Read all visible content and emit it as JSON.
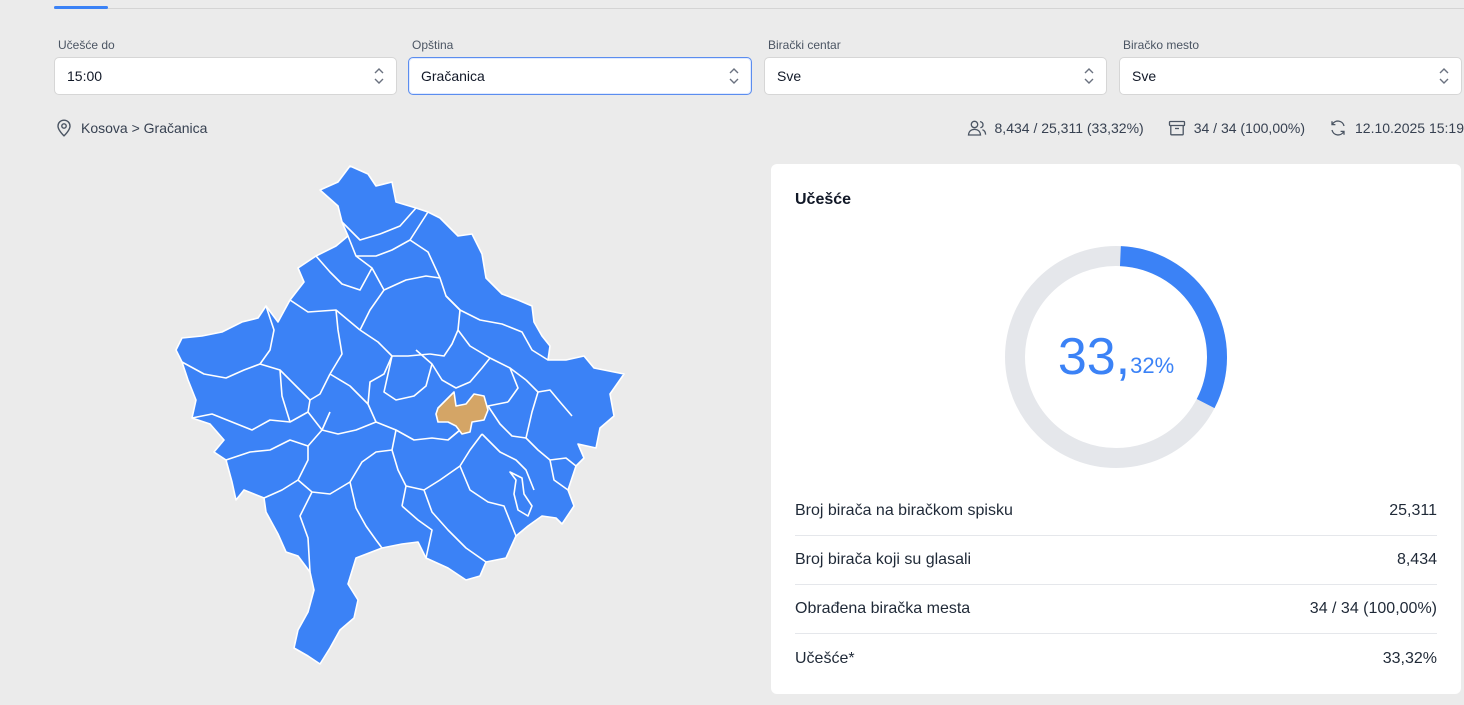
{
  "filters": [
    {
      "label": "Učešće do",
      "value": "15:00"
    },
    {
      "label": "Opština",
      "value": "Gračanica"
    },
    {
      "label": "Birački centar",
      "value": "Sve"
    },
    {
      "label": "Biračko mesto",
      "value": "Sve"
    }
  ],
  "breadcrumb": "Kosova > Gračanica",
  "stats": {
    "voters": "8,434 / 25,311 (33,32%)",
    "stations": "34 / 34 (100,00%)",
    "updated": "12.10.2025 15:19"
  },
  "card": {
    "title": "Učešće",
    "turnout_whole": "33,",
    "turnout_fraction": "32%",
    "turnout_fraction_of_total": 0.3332,
    "rows": [
      {
        "label": "Broj birača na biračkom spisku",
        "value": "25,311"
      },
      {
        "label": "Broj birača koji su glasali",
        "value": "8,434"
      },
      {
        "label": "Obrađena biračka mesta",
        "value": "34 / 34 (100,00%)"
      },
      {
        "label": "Učešće*",
        "value": "33,32%"
      }
    ]
  },
  "colors": {
    "accent": "#3b82f6",
    "map_fill": "#3b82f6",
    "map_selected": "#d4a566",
    "track": "#e5e7eb"
  }
}
